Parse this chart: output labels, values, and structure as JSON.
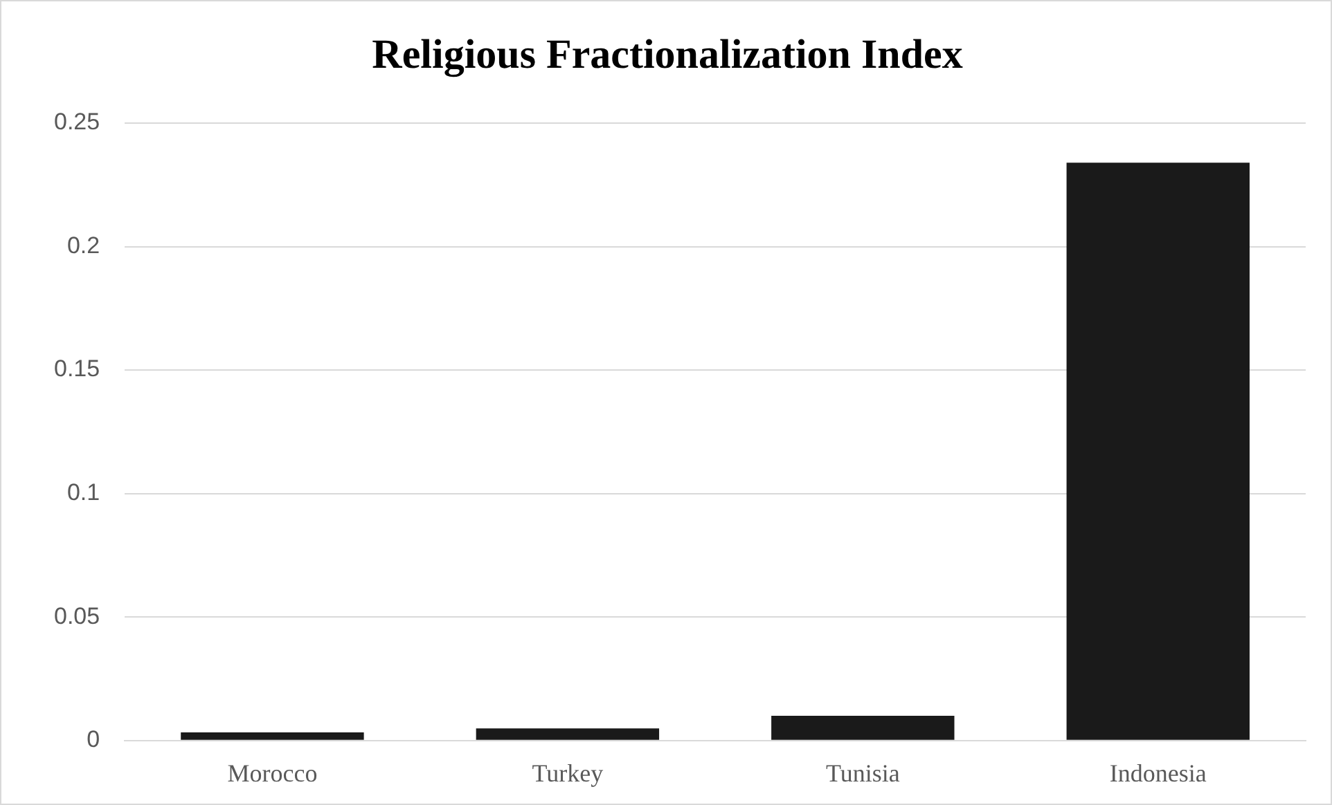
{
  "chart_data": {
    "type": "bar",
    "title": "Religious Fractionalization Index",
    "categories": [
      "Morocco",
      "Turkey",
      "Tunisia",
      "Indonesia"
    ],
    "values": [
      0.0033,
      0.0049,
      0.01,
      0.234
    ],
    "color": "#1a1a1a",
    "ylim": [
      0,
      0.25
    ],
    "yticks": [
      0,
      0.05,
      0.1,
      0.15,
      0.2,
      0.25
    ],
    "grid": "y",
    "legend": false
  }
}
